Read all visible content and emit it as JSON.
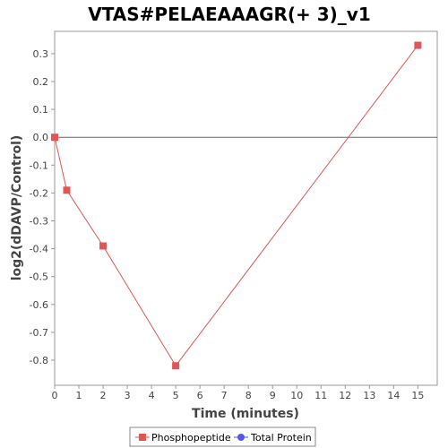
{
  "chart_data": {
    "type": "line",
    "title": "VTAS#PELAEAAAGR(+ 3)_v1",
    "xlabel": "Time (minutes)",
    "ylabel": "log2(dDAVP/Control)",
    "xlim": [
      0,
      15.8
    ],
    "ylim": [
      -0.89,
      0.38
    ],
    "xticks": [
      0,
      1,
      2,
      3,
      4,
      5,
      6,
      7,
      8,
      9,
      10,
      11,
      12,
      13,
      14,
      15
    ],
    "yticks": [
      0.3,
      0.2,
      0.1,
      0.0,
      -0.1,
      -0.2,
      -0.3,
      -0.4,
      -0.5,
      -0.6,
      -0.7,
      -0.8
    ],
    "ytick_labels": [
      "0.3",
      "0.2",
      "0.1",
      "0.0",
      "-0.1",
      "-0.2",
      "-0.3",
      "-0.4",
      "-0.5",
      "-0.6",
      "-0.7",
      "-0.8"
    ],
    "zero_line": true,
    "grid": false,
    "legend_position": "bottom",
    "series": [
      {
        "name": "Phosphopeptide",
        "color": "#e05555",
        "marker": "square",
        "x": [
          0,
          0.5,
          2,
          5,
          15
        ],
        "y": [
          0.0,
          -0.19,
          -0.39,
          -0.82,
          0.33
        ]
      },
      {
        "name": "Total Protein",
        "color": "#5555ee",
        "marker": "circle",
        "x": [],
        "y": []
      }
    ]
  }
}
